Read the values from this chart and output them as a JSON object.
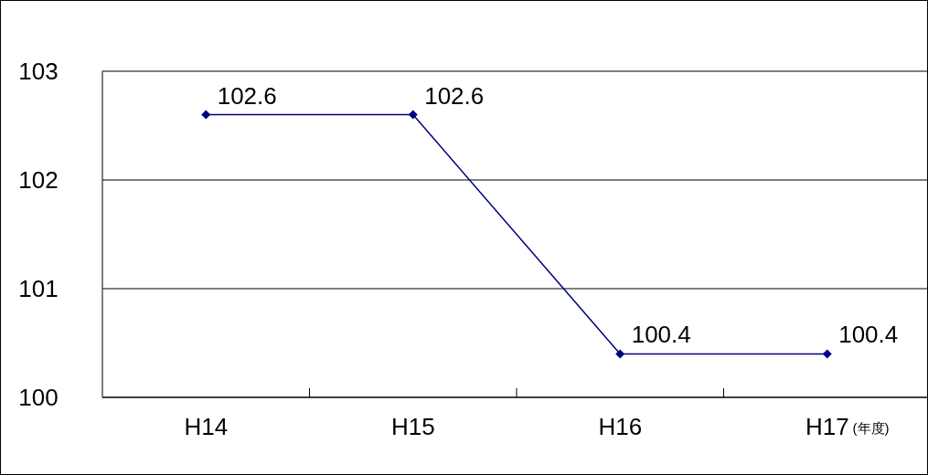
{
  "chart_data": {
    "type": "line",
    "categories": [
      "H14",
      "H15",
      "H16",
      "H17"
    ],
    "xlabel": "(年度)",
    "series": [
      {
        "color": "#000080",
        "values": [
          102.6,
          102.6,
          100.4,
          100.4
        ]
      }
    ],
    "ylim": [
      100,
      103
    ],
    "yticks": [
      100,
      101,
      102,
      103
    ],
    "grid": "y",
    "marker": "diamond",
    "data_labels": true
  }
}
